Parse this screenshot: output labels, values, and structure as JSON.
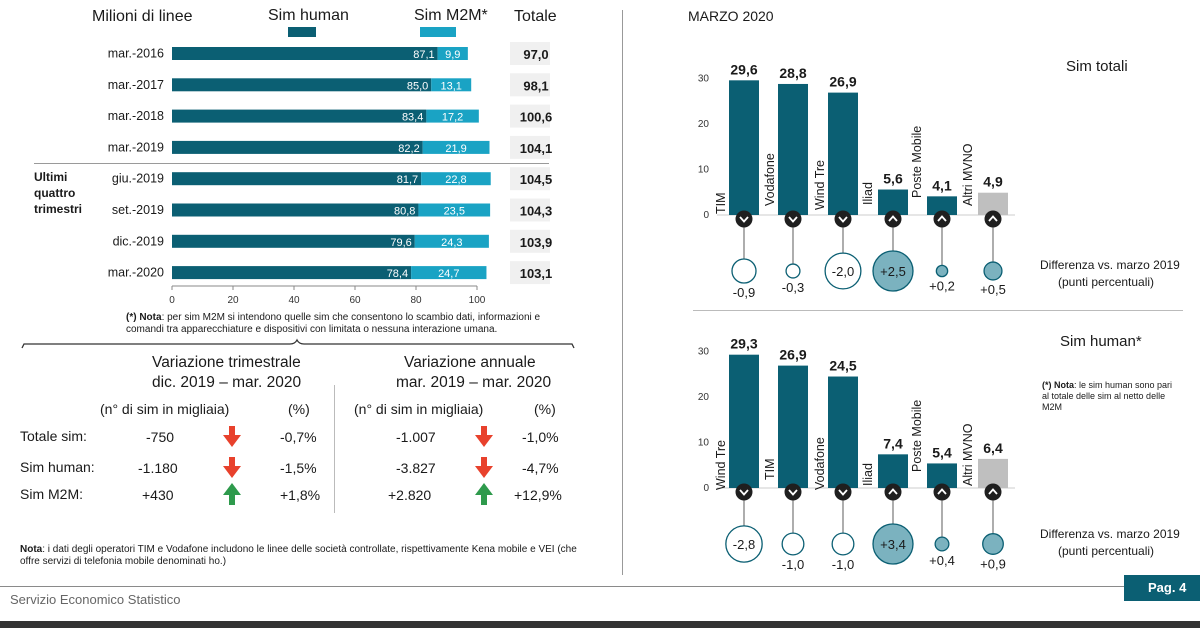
{
  "left_chart": {
    "title": "Milioni di linee",
    "legend_human": "Sim human",
    "legend_m2m": "Sim M2M*",
    "totale_label": "Totale",
    "group_label": [
      "Ultimi",
      "quattro",
      "trimestri"
    ],
    "note_bold": "(*) Nota",
    "note_text_1": ": per sim M2M si intendono quelle sim che consentono lo scambio dati, informazioni e",
    "note_text_2": "comandi tra apparecchiature e dispositivi con limitata o nessuna interazione umana."
  },
  "variation": {
    "trim_title_1": "Variazione trimestrale",
    "trim_title_2": "dic. 2019 – mar. 2020",
    "ann_title_1": "Variazione annuale",
    "ann_title_2": "mar. 2019 – mar. 2020",
    "col_count": "(n° di sim in migliaia)",
    "col_pct": "(%)",
    "rows": [
      {
        "label": "Totale sim:",
        "trim_n": "-750",
        "trim_pct": "-0,7%",
        "ann_n": "-1.007",
        "ann_pct": "-1,0%",
        "dir": "down"
      },
      {
        "label": "Sim human:",
        "trim_n": "-1.180",
        "trim_pct": "-1,5%",
        "ann_n": "-3.827",
        "ann_pct": "-4,7%",
        "dir": "down"
      },
      {
        "label": "Sim M2M:",
        "trim_n": "+430",
        "trim_pct": "+1,8%",
        "ann_n": "+2.820",
        "ann_pct": "+12,9%",
        "dir": "up"
      }
    ],
    "down_color": "#e8412c",
    "up_color": "#2e9a4c"
  },
  "bottom_note": {
    "bold": "Nota",
    "text_1": ": i dati degli operatori TIM e Vodafone includono le linee delle società controllate, rispettivamente Kena mobile e VEI (che",
    "text_2": "offre servizi di telefonia mobile denominati ho.)"
  },
  "right_panel": {
    "date": "MARZO 2020",
    "diff_label_1": "Differenza vs. marzo 2019",
    "diff_label_2": "(punti percentuali)",
    "human_note_bold": "(*) Nota",
    "human_note_1": ": le sim human sono pari",
    "human_note_2": "al totale delle sim al netto delle",
    "human_note_3": "M2M"
  },
  "footer": {
    "left": "Servizio Economico Statistico",
    "page": "Pag. 4"
  },
  "colors": {
    "human": "#0b5f73",
    "m2m": "#1aa3c4",
    "other": "#bfbfbf",
    "bubble_fill": "#7bb2bf"
  },
  "chart_data": [
    {
      "type": "bar",
      "orientation": "horizontal",
      "stacked": true,
      "title": "Milioni di linee",
      "categories": [
        "mar.-2016",
        "mar.-2017",
        "mar.-2018",
        "mar.-2019",
        "giu.-2019",
        "set.-2019",
        "dic.-2019",
        "mar.-2020"
      ],
      "series": [
        {
          "name": "Sim human",
          "values": [
            87.1,
            85.0,
            83.4,
            82.2,
            81.7,
            80.8,
            79.6,
            78.4
          ],
          "labels": [
            "87,1",
            "85,0",
            "83,4",
            "82,2",
            "81,7",
            "80,8",
            "79,6",
            "78,4"
          ]
        },
        {
          "name": "Sim M2M*",
          "values": [
            9.9,
            13.1,
            17.2,
            21.9,
            22.8,
            23.5,
            24.3,
            24.7
          ],
          "labels": [
            "9,9",
            "13,1",
            "17,2",
            "21,9",
            "22,8",
            "23,5",
            "24,3",
            "24,7"
          ]
        }
      ],
      "totals": [
        "97,0",
        "98,1",
        "100,6",
        "104,1",
        "104,5",
        "104,3",
        "103,9",
        "103,1"
      ],
      "xlim": [
        0,
        100
      ],
      "xticks": [
        "0",
        "20",
        "40",
        "60",
        "80",
        "100"
      ]
    },
    {
      "type": "bar",
      "title": "Sim totali",
      "categories": [
        "TIM",
        "Vodafone",
        "Wind Tre",
        "Iliad",
        "Poste Mobile",
        "Altri MVNO"
      ],
      "values": [
        29.6,
        28.8,
        26.9,
        5.6,
        4.1,
        4.9
      ],
      "value_labels": [
        "29,6",
        "28,8",
        "26,9",
        "5,6",
        "4,1",
        "4,9"
      ],
      "diff": [
        -0.9,
        -0.3,
        -2.0,
        2.5,
        0.2,
        0.5
      ],
      "diff_labels": [
        "-0,9",
        "-0,3",
        "-2,0",
        "+2,5",
        "+0,2",
        "+0,5"
      ],
      "ylim": [
        0,
        30
      ],
      "yticks": [
        "0",
        "10",
        "20",
        "30"
      ]
    },
    {
      "type": "bar",
      "title": "Sim human*",
      "categories": [
        "Wind Tre",
        "TIM",
        "Vodafone",
        "Iliad",
        "Poste Mobile",
        "Altri MVNO"
      ],
      "values": [
        29.3,
        26.9,
        24.5,
        7.4,
        5.4,
        6.4
      ],
      "value_labels": [
        "29,3",
        "26,9",
        "24,5",
        "7,4",
        "5,4",
        "6,4"
      ],
      "diff": [
        -2.8,
        -1.0,
        -1.0,
        3.4,
        0.4,
        0.9
      ],
      "diff_labels": [
        "-2,8",
        "-1,0",
        "-1,0",
        "+3,4",
        "+0,4",
        "+0,9"
      ],
      "ylim": [
        0,
        30
      ],
      "yticks": [
        "0",
        "10",
        "20",
        "30"
      ]
    }
  ]
}
